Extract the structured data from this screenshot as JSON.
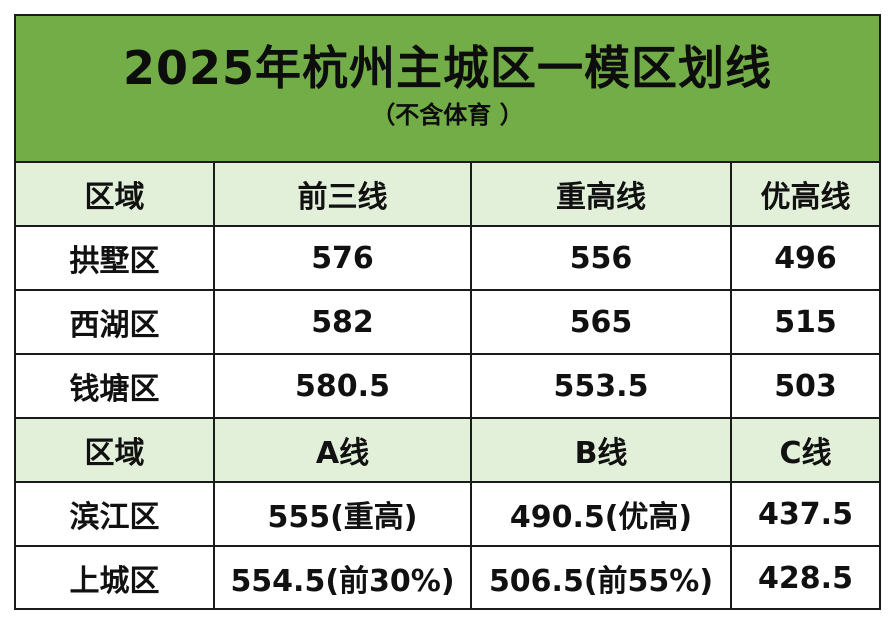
{
  "title": "2025年杭州主城区一模区划线",
  "subtitle": "（不含体育 ）",
  "colors": {
    "title_band": "#72ad47",
    "header_row": "#e2efd9"
  },
  "section1": {
    "header": [
      "区域",
      "前三线",
      "重高线",
      "优高线"
    ],
    "rows": [
      [
        "拱墅区",
        "576",
        "556",
        "496"
      ],
      [
        "西湖区",
        "582",
        "565",
        "515"
      ],
      [
        "钱塘区",
        "580.5",
        "553.5",
        "503"
      ]
    ]
  },
  "section2": {
    "header": [
      "区域",
      "A线",
      "B线",
      "C线"
    ],
    "rows": [
      [
        "滨江区",
        "555(重高)",
        "490.5(优高)",
        "437.5"
      ],
      [
        "上城区",
        "554.5(前30%)",
        "506.5(前55%)",
        "428.5"
      ]
    ]
  }
}
